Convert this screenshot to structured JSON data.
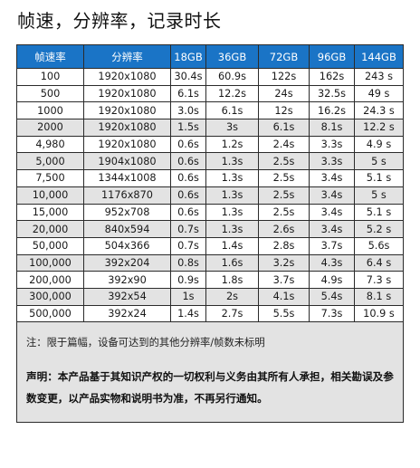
{
  "title": "帧速，分辨率，记录时长",
  "table": {
    "headers": [
      "帧速率",
      "分辨率",
      "18GB",
      "36GB",
      "72GB",
      "96GB",
      "144GB"
    ],
    "rows": [
      [
        "100",
        "1920x1080",
        "30.4s",
        "60.9s",
        "122s",
        "162s",
        "243 s"
      ],
      [
        "500",
        "1920x1080",
        "6.1s",
        "12.2s",
        "24s",
        "32.5s",
        "49 s"
      ],
      [
        "1000",
        "1920x1080",
        "3.0s",
        "6.1s",
        "12s",
        "16.2s",
        "24.3 s"
      ],
      [
        "2000",
        "1920x1080",
        "1.5s",
        "3s",
        "6.1s",
        "8.1s",
        "12.2 s"
      ],
      [
        "4,980",
        "1920x1080",
        "0.6s",
        "1.2s",
        "2.4s",
        "3.3s",
        "4.9 s"
      ],
      [
        "5,000",
        "1904x1080",
        "0.6s",
        "1.3s",
        "2.5s",
        "3.3s",
        "5 s"
      ],
      [
        "7,500",
        "1344x1008",
        "0.6s",
        "1.3s",
        "2.5s",
        "3.4s",
        "5.1 s"
      ],
      [
        "10,000",
        "1176x870",
        "0.6s",
        "1.3s",
        "2.5s",
        "3.4s",
        "5 s"
      ],
      [
        "15,000",
        "952x708",
        "0.6s",
        "1.3s",
        "2.5s",
        "3.4s",
        "5.1 s"
      ],
      [
        "20,000",
        "840x594",
        "0.7s",
        "1.3s",
        "2.6s",
        "3.4s",
        "5.2 s"
      ],
      [
        "50,000",
        "504x366",
        "0.7s",
        "1.4s",
        "2.8s",
        "3.7s",
        "5.6s"
      ],
      [
        "100,000",
        "392x204",
        "0.8s",
        "1.6s",
        "3.2s",
        "4.3s",
        "6.4 s"
      ],
      [
        "200,000",
        "392x90",
        "0.9s",
        "1.8s",
        "3.7s",
        "4.9s",
        "7.3 s"
      ],
      [
        "300,000",
        "392x54",
        "1s",
        "2s",
        "4.1s",
        "5.4s",
        "8.1 s"
      ],
      [
        "500,000",
        "392x24",
        "1.4s",
        "2.7s",
        "5.5s",
        "7.3s",
        "10.9 s"
      ]
    ],
    "shaded_rows": [
      3,
      5,
      7,
      9,
      11,
      13
    ]
  },
  "note": "注：限于篇幅，设备可达到的其他分辨率/帧数未标明",
  "statement": "声明：本产品基于其知识产权的一切权利与义务由其所有人承担，相关勘误及参数变更，以产品实物和说明书为准，不再另行通知。",
  "colors": {
    "header_bg": "#1a74c6",
    "header_text": "#ffffff",
    "shade_bg": "#e3e3e3"
  }
}
